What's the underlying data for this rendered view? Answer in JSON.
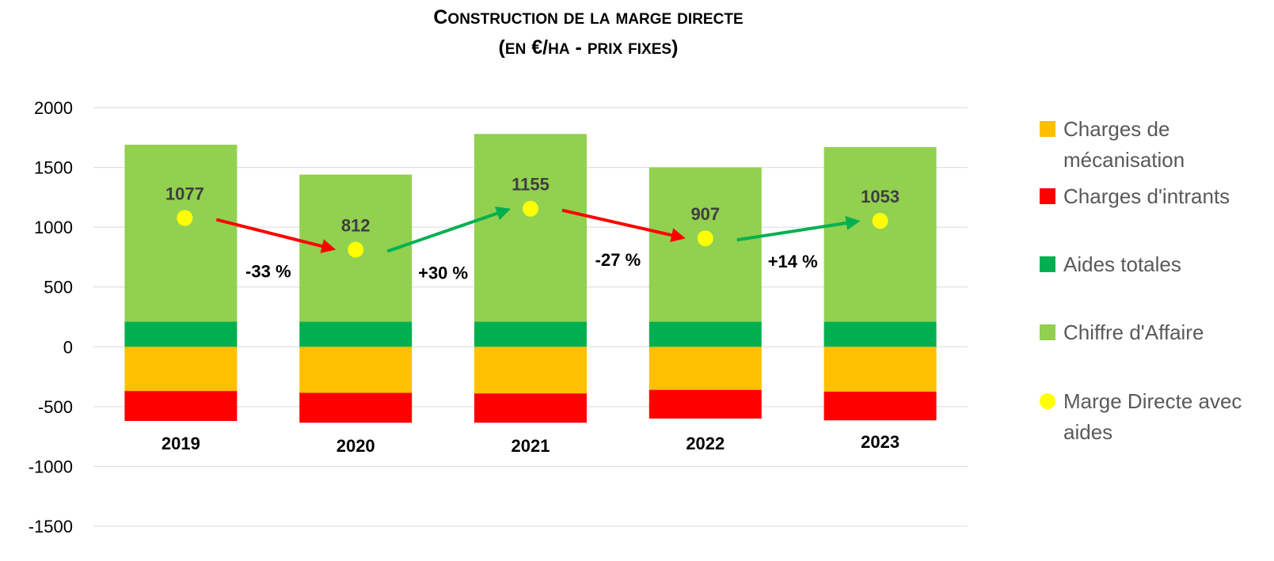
{
  "chart_data": {
    "type": "bar",
    "stacked": true,
    "title": "Construction de la marge directe",
    "subtitle": "(en €/ha - prix fixes)",
    "categories": [
      "2019",
      "2020",
      "2021",
      "2022",
      "2023"
    ],
    "ylim": [
      -1500,
      2000
    ],
    "yticks": [
      2000,
      1500,
      1000,
      500,
      0,
      -500,
      -1000,
      -1500
    ],
    "grid": true,
    "legend_position": "right",
    "series": [
      {
        "name": "Charges de mécanisation",
        "kind": "bar",
        "color": "#FFC000",
        "values": [
          -370,
          -385,
          -390,
          -360,
          -375
        ]
      },
      {
        "name": "Charges d'intrants",
        "kind": "bar",
        "color": "#FF0000",
        "values": [
          -250,
          -250,
          -245,
          -240,
          -240
        ]
      },
      {
        "name": "Aides totales",
        "kind": "bar",
        "color": "#00B050",
        "values": [
          210,
          210,
          210,
          210,
          210
        ]
      },
      {
        "name": "Chiffre d'Affaire",
        "kind": "bar",
        "color": "#92D050",
        "values": [
          1480,
          1230,
          1570,
          1290,
          1460
        ]
      },
      {
        "name": "Marge Directe avec aides",
        "kind": "point",
        "color": "#FFFF00",
        "values": [
          1077,
          812,
          1155,
          907,
          1053
        ]
      }
    ],
    "data_labels": [
      "1077",
      "812",
      "1155",
      "907",
      "1053"
    ],
    "annotations": [
      {
        "text": "-33 %",
        "color": "#FF0000",
        "from": 0,
        "to": 1
      },
      {
        "text": "+30 %",
        "color": "#00B050",
        "from": 1,
        "to": 2
      },
      {
        "text": "-27 %",
        "color": "#FF0000",
        "from": 2,
        "to": 3
      },
      {
        "text": "+14 %",
        "color": "#00B050",
        "from": 3,
        "to": 4
      }
    ]
  },
  "legend": [
    {
      "lines": [
        "Charges de",
        "mécanisation"
      ],
      "color": "#FFC000",
      "shape": "square"
    },
    {
      "lines": [
        "Charges d'intrants"
      ],
      "color": "#FF0000",
      "shape": "square"
    },
    {
      "lines": [
        "Aides totales"
      ],
      "color": "#00B050",
      "shape": "square"
    },
    {
      "lines": [
        "Chiffre d'Affaire"
      ],
      "color": "#92D050",
      "shape": "square"
    },
    {
      "lines": [
        "Marge Directe avec",
        "aides"
      ],
      "color": "#FFFF00",
      "shape": "circle"
    }
  ]
}
